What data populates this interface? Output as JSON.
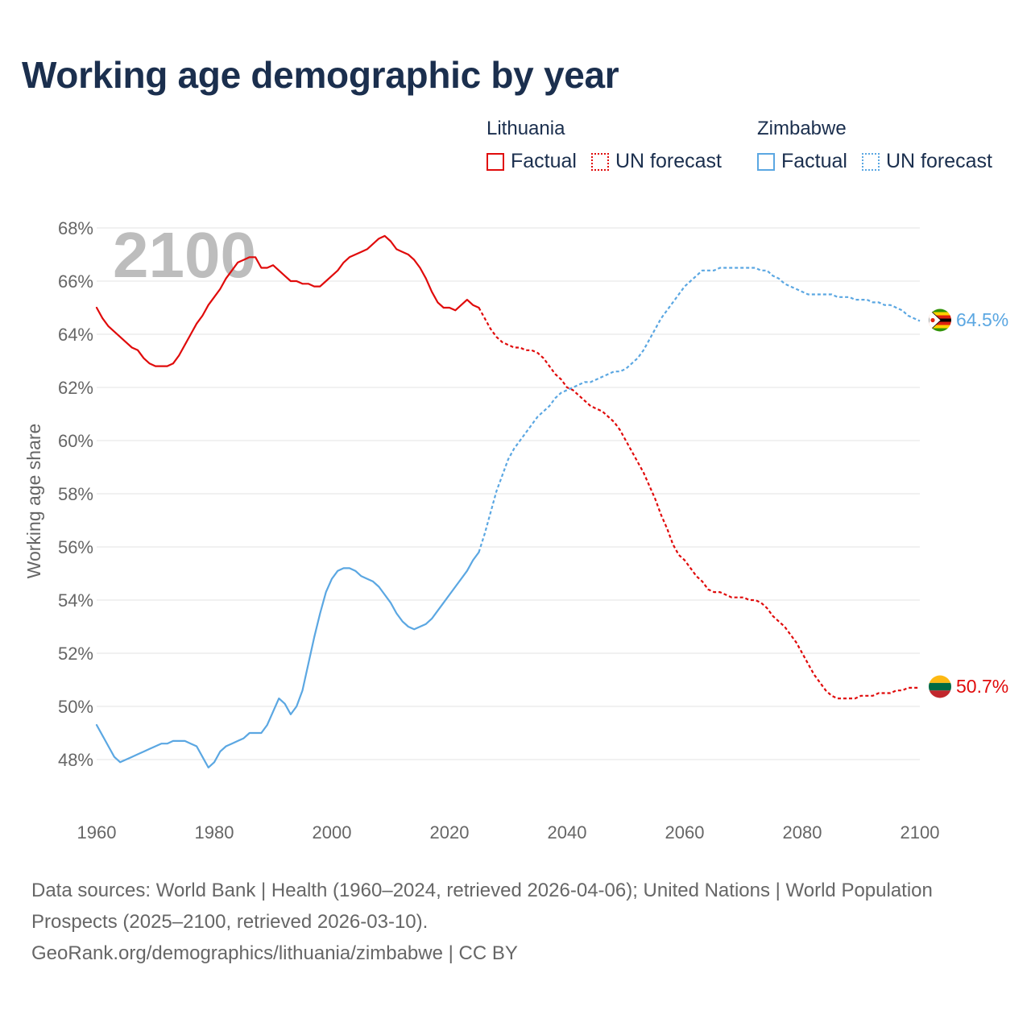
{
  "title": "Working age demographic by year",
  "legend": {
    "groups": [
      {
        "name": "Lithuania",
        "factual_label": "Factual",
        "forecast_label": "UN forecast",
        "color": "#e00b0b"
      },
      {
        "name": "Zimbabwe",
        "factual_label": "Factual",
        "forecast_label": "UN forecast",
        "color": "#5ba7e2"
      }
    ]
  },
  "footer": {
    "sources": "Data sources: World Bank | Health (1960–2024, retrieved 2026-04-06); United Nations | World Population Prospects (2025–2100, retrieved 2026-03-10).",
    "attribution": "GeoRank.org/demographics/lithuania/zimbabwe | CC BY"
  },
  "chart_data": {
    "type": "line",
    "ylabel": "Working age share",
    "xlabel": "",
    "year_watermark": "2100",
    "xlim": [
      1960,
      2100
    ],
    "ylim": [
      46.8,
      68.5
    ],
    "x_ticks": [
      1960,
      1980,
      2000,
      2020,
      2040,
      2060,
      2080,
      2100
    ],
    "x_tick_labels": [
      "1960",
      "1980",
      "2000",
      "2020",
      "2040",
      "2060",
      "2080",
      "2100"
    ],
    "y_ticks": [
      48,
      50,
      52,
      54,
      56,
      58,
      60,
      62,
      64,
      66,
      68
    ],
    "y_tick_labels": [
      "48%",
      "50%",
      "52%",
      "54%",
      "56%",
      "58%",
      "60%",
      "62%",
      "64%",
      "66%",
      "68%"
    ],
    "grid": true,
    "forecast_start_year": 2025,
    "series": [
      {
        "name": "Lithuania",
        "color": "#e00b0b",
        "end_label": "50.7%",
        "flag": "lithuania-flag",
        "points": [
          [
            1960,
            65.0
          ],
          [
            1961,
            64.6
          ],
          [
            1962,
            64.3
          ],
          [
            1963,
            64.1
          ],
          [
            1964,
            63.9
          ],
          [
            1965,
            63.7
          ],
          [
            1966,
            63.5
          ],
          [
            1967,
            63.4
          ],
          [
            1968,
            63.1
          ],
          [
            1969,
            62.9
          ],
          [
            1970,
            62.8
          ],
          [
            1971,
            62.8
          ],
          [
            1972,
            62.8
          ],
          [
            1973,
            62.9
          ],
          [
            1974,
            63.2
          ],
          [
            1975,
            63.6
          ],
          [
            1976,
            64.0
          ],
          [
            1977,
            64.4
          ],
          [
            1978,
            64.7
          ],
          [
            1979,
            65.1
          ],
          [
            1980,
            65.4
          ],
          [
            1981,
            65.7
          ],
          [
            1982,
            66.1
          ],
          [
            1983,
            66.4
          ],
          [
            1984,
            66.7
          ],
          [
            1985,
            66.8
          ],
          [
            1986,
            66.9
          ],
          [
            1987,
            66.9
          ],
          [
            1988,
            66.5
          ],
          [
            1989,
            66.5
          ],
          [
            1990,
            66.6
          ],
          [
            1991,
            66.4
          ],
          [
            1992,
            66.2
          ],
          [
            1993,
            66.0
          ],
          [
            1994,
            66.0
          ],
          [
            1995,
            65.9
          ],
          [
            1996,
            65.9
          ],
          [
            1997,
            65.8
          ],
          [
            1998,
            65.8
          ],
          [
            1999,
            66.0
          ],
          [
            2000,
            66.2
          ],
          [
            2001,
            66.4
          ],
          [
            2002,
            66.7
          ],
          [
            2003,
            66.9
          ],
          [
            2004,
            67.0
          ],
          [
            2005,
            67.1
          ],
          [
            2006,
            67.2
          ],
          [
            2007,
            67.4
          ],
          [
            2008,
            67.6
          ],
          [
            2009,
            67.7
          ],
          [
            2010,
            67.5
          ],
          [
            2011,
            67.2
          ],
          [
            2012,
            67.1
          ],
          [
            2013,
            67.0
          ],
          [
            2014,
            66.8
          ],
          [
            2015,
            66.5
          ],
          [
            2016,
            66.1
          ],
          [
            2017,
            65.6
          ],
          [
            2018,
            65.2
          ],
          [
            2019,
            65.0
          ],
          [
            2020,
            65.0
          ],
          [
            2021,
            64.9
          ],
          [
            2022,
            65.1
          ],
          [
            2023,
            65.3
          ],
          [
            2024,
            65.1
          ],
          [
            2025,
            65.0
          ],
          [
            2026,
            64.6
          ],
          [
            2027,
            64.2
          ],
          [
            2028,
            63.9
          ],
          [
            2029,
            63.7
          ],
          [
            2030,
            63.6
          ],
          [
            2031,
            63.5
          ],
          [
            2032,
            63.5
          ],
          [
            2033,
            63.4
          ],
          [
            2034,
            63.4
          ],
          [
            2035,
            63.3
          ],
          [
            2036,
            63.1
          ],
          [
            2037,
            62.8
          ],
          [
            2038,
            62.5
          ],
          [
            2039,
            62.3
          ],
          [
            2040,
            62.0
          ],
          [
            2041,
            61.9
          ],
          [
            2042,
            61.7
          ],
          [
            2043,
            61.5
          ],
          [
            2044,
            61.3
          ],
          [
            2045,
            61.2
          ],
          [
            2046,
            61.1
          ],
          [
            2047,
            60.9
          ],
          [
            2048,
            60.7
          ],
          [
            2049,
            60.4
          ],
          [
            2050,
            60.0
          ],
          [
            2051,
            59.6
          ],
          [
            2052,
            59.2
          ],
          [
            2053,
            58.8
          ],
          [
            2054,
            58.3
          ],
          [
            2055,
            57.8
          ],
          [
            2056,
            57.2
          ],
          [
            2057,
            56.7
          ],
          [
            2058,
            56.1
          ],
          [
            2059,
            55.7
          ],
          [
            2060,
            55.5
          ],
          [
            2061,
            55.2
          ],
          [
            2062,
            54.9
          ],
          [
            2063,
            54.7
          ],
          [
            2064,
            54.4
          ],
          [
            2065,
            54.3
          ],
          [
            2066,
            54.3
          ],
          [
            2067,
            54.2
          ],
          [
            2068,
            54.1
          ],
          [
            2069,
            54.1
          ],
          [
            2070,
            54.1
          ],
          [
            2071,
            54.0
          ],
          [
            2072,
            54.0
          ],
          [
            2073,
            53.9
          ],
          [
            2074,
            53.7
          ],
          [
            2075,
            53.4
          ],
          [
            2076,
            53.2
          ],
          [
            2077,
            53.0
          ],
          [
            2078,
            52.7
          ],
          [
            2079,
            52.4
          ],
          [
            2080,
            52.0
          ],
          [
            2081,
            51.6
          ],
          [
            2082,
            51.2
          ],
          [
            2083,
            50.9
          ],
          [
            2084,
            50.6
          ],
          [
            2085,
            50.4
          ],
          [
            2086,
            50.3
          ],
          [
            2087,
            50.3
          ],
          [
            2088,
            50.3
          ],
          [
            2089,
            50.3
          ],
          [
            2090,
            50.4
          ],
          [
            2091,
            50.4
          ],
          [
            2092,
            50.4
          ],
          [
            2093,
            50.5
          ],
          [
            2094,
            50.5
          ],
          [
            2095,
            50.5
          ],
          [
            2096,
            50.6
          ],
          [
            2097,
            50.6
          ],
          [
            2098,
            50.7
          ],
          [
            2099,
            50.7
          ],
          [
            2100,
            50.7
          ]
        ]
      },
      {
        "name": "Zimbabwe",
        "color": "#5ba7e2",
        "end_label": "64.5%",
        "flag": "zimbabwe-flag",
        "points": [
          [
            1960,
            49.3
          ],
          [
            1961,
            48.9
          ],
          [
            1962,
            48.5
          ],
          [
            1963,
            48.1
          ],
          [
            1964,
            47.9
          ],
          [
            1965,
            48.0
          ],
          [
            1966,
            48.1
          ],
          [
            1967,
            48.2
          ],
          [
            1968,
            48.3
          ],
          [
            1969,
            48.4
          ],
          [
            1970,
            48.5
          ],
          [
            1971,
            48.6
          ],
          [
            1972,
            48.6
          ],
          [
            1973,
            48.7
          ],
          [
            1974,
            48.7
          ],
          [
            1975,
            48.7
          ],
          [
            1976,
            48.6
          ],
          [
            1977,
            48.5
          ],
          [
            1978,
            48.1
          ],
          [
            1979,
            47.7
          ],
          [
            1980,
            47.9
          ],
          [
            1981,
            48.3
          ],
          [
            1982,
            48.5
          ],
          [
            1983,
            48.6
          ],
          [
            1984,
            48.7
          ],
          [
            1985,
            48.8
          ],
          [
            1986,
            49.0
          ],
          [
            1987,
            49.0
          ],
          [
            1988,
            49.0
          ],
          [
            1989,
            49.3
          ],
          [
            1990,
            49.8
          ],
          [
            1991,
            50.3
          ],
          [
            1992,
            50.1
          ],
          [
            1993,
            49.7
          ],
          [
            1994,
            50.0
          ],
          [
            1995,
            50.6
          ],
          [
            1996,
            51.6
          ],
          [
            1997,
            52.6
          ],
          [
            1998,
            53.5
          ],
          [
            1999,
            54.3
          ],
          [
            2000,
            54.8
          ],
          [
            2001,
            55.1
          ],
          [
            2002,
            55.2
          ],
          [
            2003,
            55.2
          ],
          [
            2004,
            55.1
          ],
          [
            2005,
            54.9
          ],
          [
            2006,
            54.8
          ],
          [
            2007,
            54.7
          ],
          [
            2008,
            54.5
          ],
          [
            2009,
            54.2
          ],
          [
            2010,
            53.9
          ],
          [
            2011,
            53.5
          ],
          [
            2012,
            53.2
          ],
          [
            2013,
            53.0
          ],
          [
            2014,
            52.9
          ],
          [
            2015,
            53.0
          ],
          [
            2016,
            53.1
          ],
          [
            2017,
            53.3
          ],
          [
            2018,
            53.6
          ],
          [
            2019,
            53.9
          ],
          [
            2020,
            54.2
          ],
          [
            2021,
            54.5
          ],
          [
            2022,
            54.8
          ],
          [
            2023,
            55.1
          ],
          [
            2024,
            55.5
          ],
          [
            2025,
            55.8
          ],
          [
            2026,
            56.5
          ],
          [
            2027,
            57.3
          ],
          [
            2028,
            58.1
          ],
          [
            2029,
            58.7
          ],
          [
            2030,
            59.3
          ],
          [
            2031,
            59.7
          ],
          [
            2032,
            60.0
          ],
          [
            2033,
            60.3
          ],
          [
            2034,
            60.6
          ],
          [
            2035,
            60.9
          ],
          [
            2036,
            61.1
          ],
          [
            2037,
            61.3
          ],
          [
            2038,
            61.6
          ],
          [
            2039,
            61.8
          ],
          [
            2040,
            61.9
          ],
          [
            2041,
            62.0
          ],
          [
            2042,
            62.1
          ],
          [
            2043,
            62.2
          ],
          [
            2044,
            62.2
          ],
          [
            2045,
            62.3
          ],
          [
            2046,
            62.4
          ],
          [
            2047,
            62.5
          ],
          [
            2048,
            62.6
          ],
          [
            2049,
            62.6
          ],
          [
            2050,
            62.7
          ],
          [
            2051,
            62.9
          ],
          [
            2052,
            63.1
          ],
          [
            2053,
            63.4
          ],
          [
            2054,
            63.8
          ],
          [
            2055,
            64.2
          ],
          [
            2056,
            64.6
          ],
          [
            2057,
            64.9
          ],
          [
            2058,
            65.2
          ],
          [
            2059,
            65.5
          ],
          [
            2060,
            65.8
          ],
          [
            2061,
            66.0
          ],
          [
            2062,
            66.2
          ],
          [
            2063,
            66.4
          ],
          [
            2064,
            66.4
          ],
          [
            2065,
            66.4
          ],
          [
            2066,
            66.5
          ],
          [
            2067,
            66.5
          ],
          [
            2068,
            66.5
          ],
          [
            2069,
            66.5
          ],
          [
            2070,
            66.5
          ],
          [
            2071,
            66.5
          ],
          [
            2072,
            66.5
          ],
          [
            2073,
            66.4
          ],
          [
            2074,
            66.4
          ],
          [
            2075,
            66.2
          ],
          [
            2076,
            66.1
          ],
          [
            2077,
            65.9
          ],
          [
            2078,
            65.8
          ],
          [
            2079,
            65.7
          ],
          [
            2080,
            65.6
          ],
          [
            2081,
            65.5
          ],
          [
            2082,
            65.5
          ],
          [
            2083,
            65.5
          ],
          [
            2084,
            65.5
          ],
          [
            2085,
            65.5
          ],
          [
            2086,
            65.4
          ],
          [
            2087,
            65.4
          ],
          [
            2088,
            65.4
          ],
          [
            2089,
            65.3
          ],
          [
            2090,
            65.3
          ],
          [
            2091,
            65.3
          ],
          [
            2092,
            65.2
          ],
          [
            2093,
            65.2
          ],
          [
            2094,
            65.1
          ],
          [
            2095,
            65.1
          ],
          [
            2096,
            65.0
          ],
          [
            2097,
            64.9
          ],
          [
            2098,
            64.7
          ],
          [
            2099,
            64.6
          ],
          [
            2100,
            64.5
          ]
        ]
      }
    ]
  }
}
